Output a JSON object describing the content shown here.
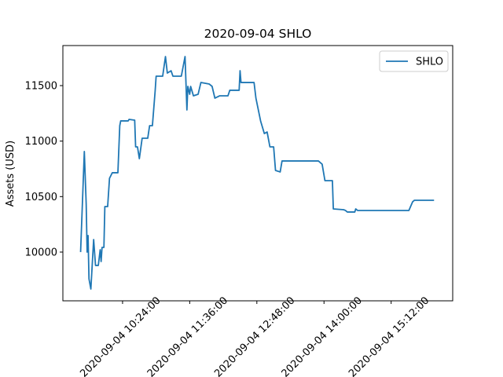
{
  "chart_data": {
    "type": "line",
    "title": "2020-09-04 SHLO",
    "y_label": "Assets (USD)",
    "legend": "upper right",
    "x": [
      "2020-09-04 09:39:00",
      "2020-09-04 09:43:00",
      "2020-09-04 09:45:00",
      "2020-09-04 09:46:00",
      "2020-09-04 09:47:00",
      "2020-09-04 09:48:00",
      "2020-09-04 09:50:00",
      "2020-09-04 09:53:00",
      "2020-09-04 09:55:00",
      "2020-09-04 09:58:00",
      "2020-09-04 10:00:00",
      "2020-09-04 10:01:00",
      "2020-09-04 10:02:00",
      "2020-09-04 10:04:00",
      "2020-09-04 10:05:00",
      "2020-09-04 10:08:00",
      "2020-09-04 10:10:00",
      "2020-09-04 10:13:00",
      "2020-09-04 10:19:00",
      "2020-09-04 10:21:00",
      "2020-09-04 10:22:00",
      "2020-09-04 10:30:00",
      "2020-09-04 10:31:00",
      "2020-09-04 10:37:00",
      "2020-09-04 10:38:00",
      "2020-09-04 10:40:00",
      "2020-09-04 10:42:00",
      "2020-09-04 10:45:00",
      "2020-09-04 10:51:00",
      "2020-09-04 10:53:00",
      "2020-09-04 10:56:00",
      "2020-09-04 10:59:00",
      "2020-09-04 11:00:00",
      "2020-09-04 11:07:00",
      "2020-09-04 11:10:00",
      "2020-09-04 11:12:00",
      "2020-09-04 11:16:00",
      "2020-09-04 11:18:00",
      "2020-09-04 11:27:00",
      "2020-09-04 11:31:00",
      "2020-09-04 11:33:00",
      "2020-09-04 11:34:00",
      "2020-09-04 11:36:00",
      "2020-09-04 11:37:00",
      "2020-09-04 11:40:00",
      "2020-09-04 11:45:00",
      "2020-09-04 11:48:00",
      "2020-09-04 11:57:00",
      "2020-09-04 12:00:00",
      "2020-09-04 12:03:00",
      "2020-09-04 12:08:00",
      "2020-09-04 12:17:00",
      "2020-09-04 12:19:00",
      "2020-09-04 12:29:00",
      "2020-09-04 12:30:00",
      "2020-09-04 12:31:00",
      "2020-09-04 12:45:00",
      "2020-09-04 12:47:00",
      "2020-09-04 12:52:00",
      "2020-09-04 12:56:00",
      "2020-09-04 12:59:00",
      "2020-09-04 13:02:00",
      "2020-09-04 13:06:00",
      "2020-09-04 13:08:00",
      "2020-09-04 13:13:00",
      "2020-09-04 13:15:00",
      "2020-09-04 13:17:00",
      "2020-09-04 13:54:00",
      "2020-09-04 13:58:00",
      "2020-09-04 14:01:00",
      "2020-09-04 14:09:00",
      "2020-09-04 14:10:00",
      "2020-09-04 14:21:00",
      "2020-09-04 14:23:00",
      "2020-09-04 14:25:00",
      "2020-09-04 14:33:00",
      "2020-09-04 14:34:00",
      "2020-09-04 14:36:00",
      "2020-09-04 15:31:00",
      "2020-09-04 15:35:00",
      "2020-09-04 15:37:00",
      "2020-09-04 15:58:00"
    ],
    "series": [
      {
        "name": "SHLO",
        "color": "#1f77b4",
        "values": [
          10000,
          10906,
          10432,
          10000,
          10149,
          9759,
          9667,
          10113,
          9880,
          9880,
          10021,
          9915,
          10042,
          10042,
          10410,
          10410,
          10665,
          10715,
          10715,
          11139,
          11182,
          11182,
          11196,
          11189,
          10948,
          10948,
          10842,
          11026,
          11026,
          11139,
          11139,
          11458,
          11585,
          11585,
          11762,
          11613,
          11634,
          11585,
          11585,
          11762,
          11281,
          11493,
          11422,
          11493,
          11408,
          11422,
          11528,
          11514,
          11493,
          11387,
          11408,
          11408,
          11458,
          11458,
          11634,
          11528,
          11528,
          11387,
          11182,
          11068,
          11082,
          10948,
          10948,
          10736,
          10722,
          10821,
          10821,
          10821,
          10792,
          10644,
          10644,
          10389,
          10382,
          10375,
          10361,
          10361,
          10389,
          10375,
          10375,
          10453,
          10467,
          10467
        ]
      }
    ],
    "xlim": [
      "2020-09-04 09:20:00",
      "2020-09-04 16:18:00"
    ],
    "xticks": [
      "2020-09-04 10:24:00",
      "2020-09-04 11:36:00",
      "2020-09-04 12:48:00",
      "2020-09-04 14:00:00",
      "2020-09-04 15:12:00"
    ],
    "ylim": [
      9561,
      11861
    ],
    "yticks": [
      10000,
      10500,
      11000,
      11500
    ]
  }
}
